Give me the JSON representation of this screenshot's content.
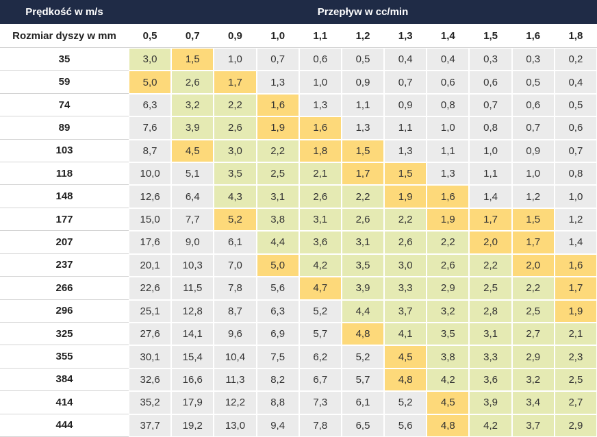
{
  "header": {
    "left": "Prędkość w m/s",
    "right": "Przepływ w cc/min"
  },
  "columns": {
    "label": "Rozmiar dyszy w mm",
    "values": [
      "0,5",
      "0,7",
      "0,9",
      "1,0",
      "1,1",
      "1,2",
      "1,3",
      "1,4",
      "1,5",
      "1,6",
      "1,8"
    ]
  },
  "rows": [
    {
      "size": "35",
      "cells": [
        "3,0",
        "1,5",
        "1,0",
        "0,7",
        "0,6",
        "0,5",
        "0,4",
        "0,4",
        "0,3",
        "0,3",
        "0,2"
      ],
      "fills": [
        "#e5eab3",
        "#fdd97a",
        "#ebebeb",
        "#ebebeb",
        "#ebebeb",
        "#ebebeb",
        "#ebebeb",
        "#ebebeb",
        "#ebebeb",
        "#ebebeb",
        "#ebebeb"
      ]
    },
    {
      "size": "59",
      "cells": [
        "5,0",
        "2,6",
        "1,7",
        "1,3",
        "1,0",
        "0,9",
        "0,7",
        "0,6",
        "0,6",
        "0,5",
        "0,4"
      ],
      "fills": [
        "#fdd97a",
        "#e5eab3",
        "#fdd97a",
        "#ebebeb",
        "#ebebeb",
        "#ebebeb",
        "#ebebeb",
        "#ebebeb",
        "#ebebeb",
        "#ebebeb",
        "#ebebeb"
      ]
    },
    {
      "size": "74",
      "cells": [
        "6,3",
        "3,2",
        "2,2",
        "1,6",
        "1,3",
        "1,1",
        "0,9",
        "0,8",
        "0,7",
        "0,6",
        "0,5"
      ],
      "fills": [
        "#ebebeb",
        "#e5eab3",
        "#e5eab3",
        "#fdd97a",
        "#ebebeb",
        "#ebebeb",
        "#ebebeb",
        "#ebebeb",
        "#ebebeb",
        "#ebebeb",
        "#ebebeb"
      ]
    },
    {
      "size": "89",
      "cells": [
        "7,6",
        "3,9",
        "2,6",
        "1,9",
        "1,6",
        "1,3",
        "1,1",
        "1,0",
        "0,8",
        "0,7",
        "0,6"
      ],
      "fills": [
        "#ebebeb",
        "#e5eab3",
        "#e5eab3",
        "#fdd97a",
        "#fdd97a",
        "#ebebeb",
        "#ebebeb",
        "#ebebeb",
        "#ebebeb",
        "#ebebeb",
        "#ebebeb"
      ]
    },
    {
      "size": "103",
      "cells": [
        "8,7",
        "4,5",
        "3,0",
        "2,2",
        "1,8",
        "1,5",
        "1,3",
        "1,1",
        "1,0",
        "0,9",
        "0,7"
      ],
      "fills": [
        "#ebebeb",
        "#fdd97a",
        "#e5eab3",
        "#e5eab3",
        "#fdd97a",
        "#fdd97a",
        "#ebebeb",
        "#ebebeb",
        "#ebebeb",
        "#ebebeb",
        "#ebebeb"
      ]
    },
    {
      "size": "118",
      "cells": [
        "10,0",
        "5,1",
        "3,5",
        "2,5",
        "2,1",
        "1,7",
        "1,5",
        "1,3",
        "1,1",
        "1,0",
        "0,8"
      ],
      "fills": [
        "#ebebeb",
        "#ebebeb",
        "#e5eab3",
        "#e5eab3",
        "#e5eab3",
        "#fdd97a",
        "#fdd97a",
        "#ebebeb",
        "#ebebeb",
        "#ebebeb",
        "#ebebeb"
      ]
    },
    {
      "size": "148",
      "cells": [
        "12,6",
        "6,4",
        "4,3",
        "3,1",
        "2,6",
        "2,2",
        "1,9",
        "1,6",
        "1,4",
        "1,2",
        "1,0"
      ],
      "fills": [
        "#ebebeb",
        "#ebebeb",
        "#e5eab3",
        "#e5eab3",
        "#e5eab3",
        "#e5eab3",
        "#fdd97a",
        "#fdd97a",
        "#ebebeb",
        "#ebebeb",
        "#ebebeb"
      ]
    },
    {
      "size": "177",
      "cells": [
        "15,0",
        "7,7",
        "5,2",
        "3,8",
        "3,1",
        "2,6",
        "2,2",
        "1,9",
        "1,7",
        "1,5",
        "1,2"
      ],
      "fills": [
        "#ebebeb",
        "#ebebeb",
        "#fdd97a",
        "#e5eab3",
        "#e5eab3",
        "#e5eab3",
        "#e5eab3",
        "#fdd97a",
        "#fdd97a",
        "#fdd97a",
        "#ebebeb"
      ]
    },
    {
      "size": "207",
      "cells": [
        "17,6",
        "9,0",
        "6,1",
        "4,4",
        "3,6",
        "3,1",
        "2,6",
        "2,2",
        "2,0",
        "1,7",
        "1,4"
      ],
      "fills": [
        "#ebebeb",
        "#ebebeb",
        "#ebebeb",
        "#e5eab3",
        "#e5eab3",
        "#e5eab3",
        "#e5eab3",
        "#e5eab3",
        "#fdd97a",
        "#fdd97a",
        "#ebebeb"
      ]
    },
    {
      "size": "237",
      "cells": [
        "20,1",
        "10,3",
        "7,0",
        "5,0",
        "4,2",
        "3,5",
        "3,0",
        "2,6",
        "2,2",
        "2,0",
        "1,6"
      ],
      "fills": [
        "#ebebeb",
        "#ebebeb",
        "#ebebeb",
        "#fdd97a",
        "#e5eab3",
        "#e5eab3",
        "#e5eab3",
        "#e5eab3",
        "#e5eab3",
        "#fdd97a",
        "#fdd97a"
      ]
    },
    {
      "size": "266",
      "cells": [
        "22,6",
        "11,5",
        "7,8",
        "5,6",
        "4,7",
        "3,9",
        "3,3",
        "2,9",
        "2,5",
        "2,2",
        "1,7"
      ],
      "fills": [
        "#ebebeb",
        "#ebebeb",
        "#ebebeb",
        "#ebebeb",
        "#fdd97a",
        "#e5eab3",
        "#e5eab3",
        "#e5eab3",
        "#e5eab3",
        "#e5eab3",
        "#fdd97a"
      ]
    },
    {
      "size": "296",
      "cells": [
        "25,1",
        "12,8",
        "8,7",
        "6,3",
        "5,2",
        "4,4",
        "3,7",
        "3,2",
        "2,8",
        "2,5",
        "1,9"
      ],
      "fills": [
        "#ebebeb",
        "#ebebeb",
        "#ebebeb",
        "#ebebeb",
        "#ebebeb",
        "#e5eab3",
        "#e5eab3",
        "#e5eab3",
        "#e5eab3",
        "#e5eab3",
        "#fdd97a"
      ]
    },
    {
      "size": "325",
      "cells": [
        "27,6",
        "14,1",
        "9,6",
        "6,9",
        "5,7",
        "4,8",
        "4,1",
        "3,5",
        "3,1",
        "2,7",
        "2,1"
      ],
      "fills": [
        "#ebebeb",
        "#ebebeb",
        "#ebebeb",
        "#ebebeb",
        "#ebebeb",
        "#fdd97a",
        "#e5eab3",
        "#e5eab3",
        "#e5eab3",
        "#e5eab3",
        "#e5eab3"
      ]
    },
    {
      "size": "355",
      "cells": [
        "30,1",
        "15,4",
        "10,4",
        "7,5",
        "6,2",
        "5,2",
        "4,5",
        "3,8",
        "3,3",
        "2,9",
        "2,3"
      ],
      "fills": [
        "#ebebeb",
        "#ebebeb",
        "#ebebeb",
        "#ebebeb",
        "#ebebeb",
        "#ebebeb",
        "#fdd97a",
        "#e5eab3",
        "#e5eab3",
        "#e5eab3",
        "#e5eab3"
      ]
    },
    {
      "size": "384",
      "cells": [
        "32,6",
        "16,6",
        "11,3",
        "8,2",
        "6,7",
        "5,7",
        "4,8",
        "4,2",
        "3,6",
        "3,2",
        "2,5"
      ],
      "fills": [
        "#ebebeb",
        "#ebebeb",
        "#ebebeb",
        "#ebebeb",
        "#ebebeb",
        "#ebebeb",
        "#fdd97a",
        "#e5eab3",
        "#e5eab3",
        "#e5eab3",
        "#e5eab3"
      ]
    },
    {
      "size": "414",
      "cells": [
        "35,2",
        "17,9",
        "12,2",
        "8,8",
        "7,3",
        "6,1",
        "5,2",
        "4,5",
        "3,9",
        "3,4",
        "2,7"
      ],
      "fills": [
        "#ebebeb",
        "#ebebeb",
        "#ebebeb",
        "#ebebeb",
        "#ebebeb",
        "#ebebeb",
        "#ebebeb",
        "#fdd97a",
        "#e5eab3",
        "#e5eab3",
        "#e5eab3"
      ]
    },
    {
      "size": "444",
      "cells": [
        "37,7",
        "19,2",
        "13,0",
        "9,4",
        "7,8",
        "6,5",
        "5,6",
        "4,8",
        "4,2",
        "3,7",
        "2,9"
      ],
      "fills": [
        "#ebebeb",
        "#ebebeb",
        "#ebebeb",
        "#ebebeb",
        "#ebebeb",
        "#ebebeb",
        "#ebebeb",
        "#fdd97a",
        "#e5eab3",
        "#e5eab3",
        "#e5eab3"
      ]
    }
  ]
}
